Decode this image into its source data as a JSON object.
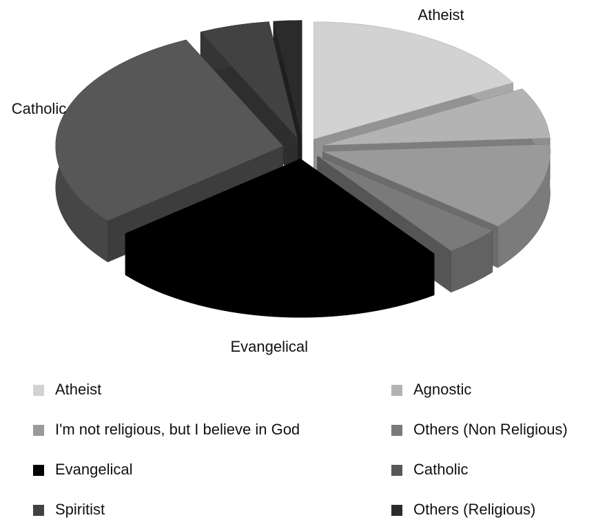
{
  "chart_data": {
    "type": "pie3d",
    "categories": [
      "Atheist",
      "Agnostic",
      "I'm not religious, but I believe in God",
      "Others (Non Religious)",
      "Evangelical",
      "Catholic",
      "Spiritist",
      "Others (Religious)"
    ],
    "values": [
      17,
      7,
      12,
      4,
      24,
      29,
      5,
      2
    ],
    "colors": [
      "#d2d2d2",
      "#b3b3b3",
      "#9a9a9a",
      "#7a7a7a",
      "#000000",
      "#575757",
      "#424242",
      "#2b2b2b"
    ],
    "legend": "bottom"
  }
}
